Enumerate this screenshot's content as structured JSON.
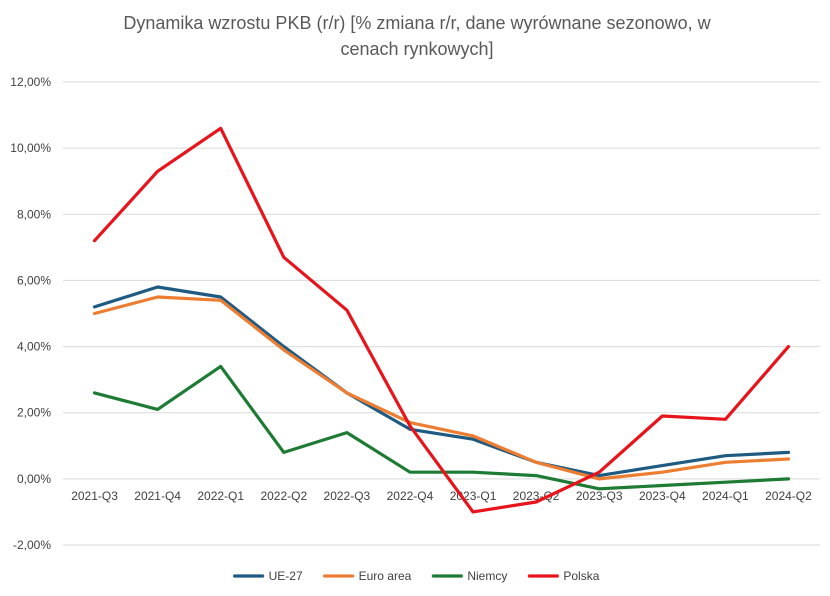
{
  "chart_data": {
    "type": "line",
    "title_lines": [
      "Dynamika wzrostu PKB (r/r) [% zmiana r/r, dane wyrównane sezonowo, w",
      "cenach rynkowych]"
    ],
    "categories": [
      "2021-Q3",
      "2021-Q4",
      "2022-Q1",
      "2022-Q2",
      "2022-Q3",
      "2022-Q4",
      "2023-Q1",
      "2023-Q2",
      "2023-Q3",
      "2023-Q4",
      "2024-Q1",
      "2024-Q2"
    ],
    "y_ticks": [
      "12,00%",
      "10,00%",
      "8,00%",
      "6,00%",
      "4,00%",
      "2,00%",
      "0,00%",
      "-2,00%"
    ],
    "ylim": [
      -2,
      12
    ],
    "grid": true,
    "legend_position": "bottom",
    "series": [
      {
        "name": "UE-27",
        "color": "#1f5a82",
        "values": [
          5.2,
          5.8,
          5.5,
          4.0,
          2.6,
          1.5,
          1.2,
          0.5,
          0.1,
          0.4,
          0.7,
          0.8
        ]
      },
      {
        "name": "Euro area",
        "color": "#ed7d31",
        "values": [
          5.0,
          5.5,
          5.4,
          3.9,
          2.6,
          1.7,
          1.3,
          0.5,
          0.0,
          0.2,
          0.5,
          0.6
        ]
      },
      {
        "name": "Niemcy",
        "color": "#1e7b34",
        "values": [
          2.6,
          2.1,
          3.4,
          0.8,
          1.4,
          0.2,
          0.2,
          0.1,
          -0.3,
          -0.2,
          -0.1,
          0.0
        ]
      },
      {
        "name": "Polska",
        "color": "#e8141b",
        "values": [
          7.2,
          9.3,
          10.6,
          6.7,
          5.1,
          1.6,
          -1.0,
          -0.7,
          0.2,
          1.9,
          1.8,
          4.0
        ]
      }
    ]
  }
}
